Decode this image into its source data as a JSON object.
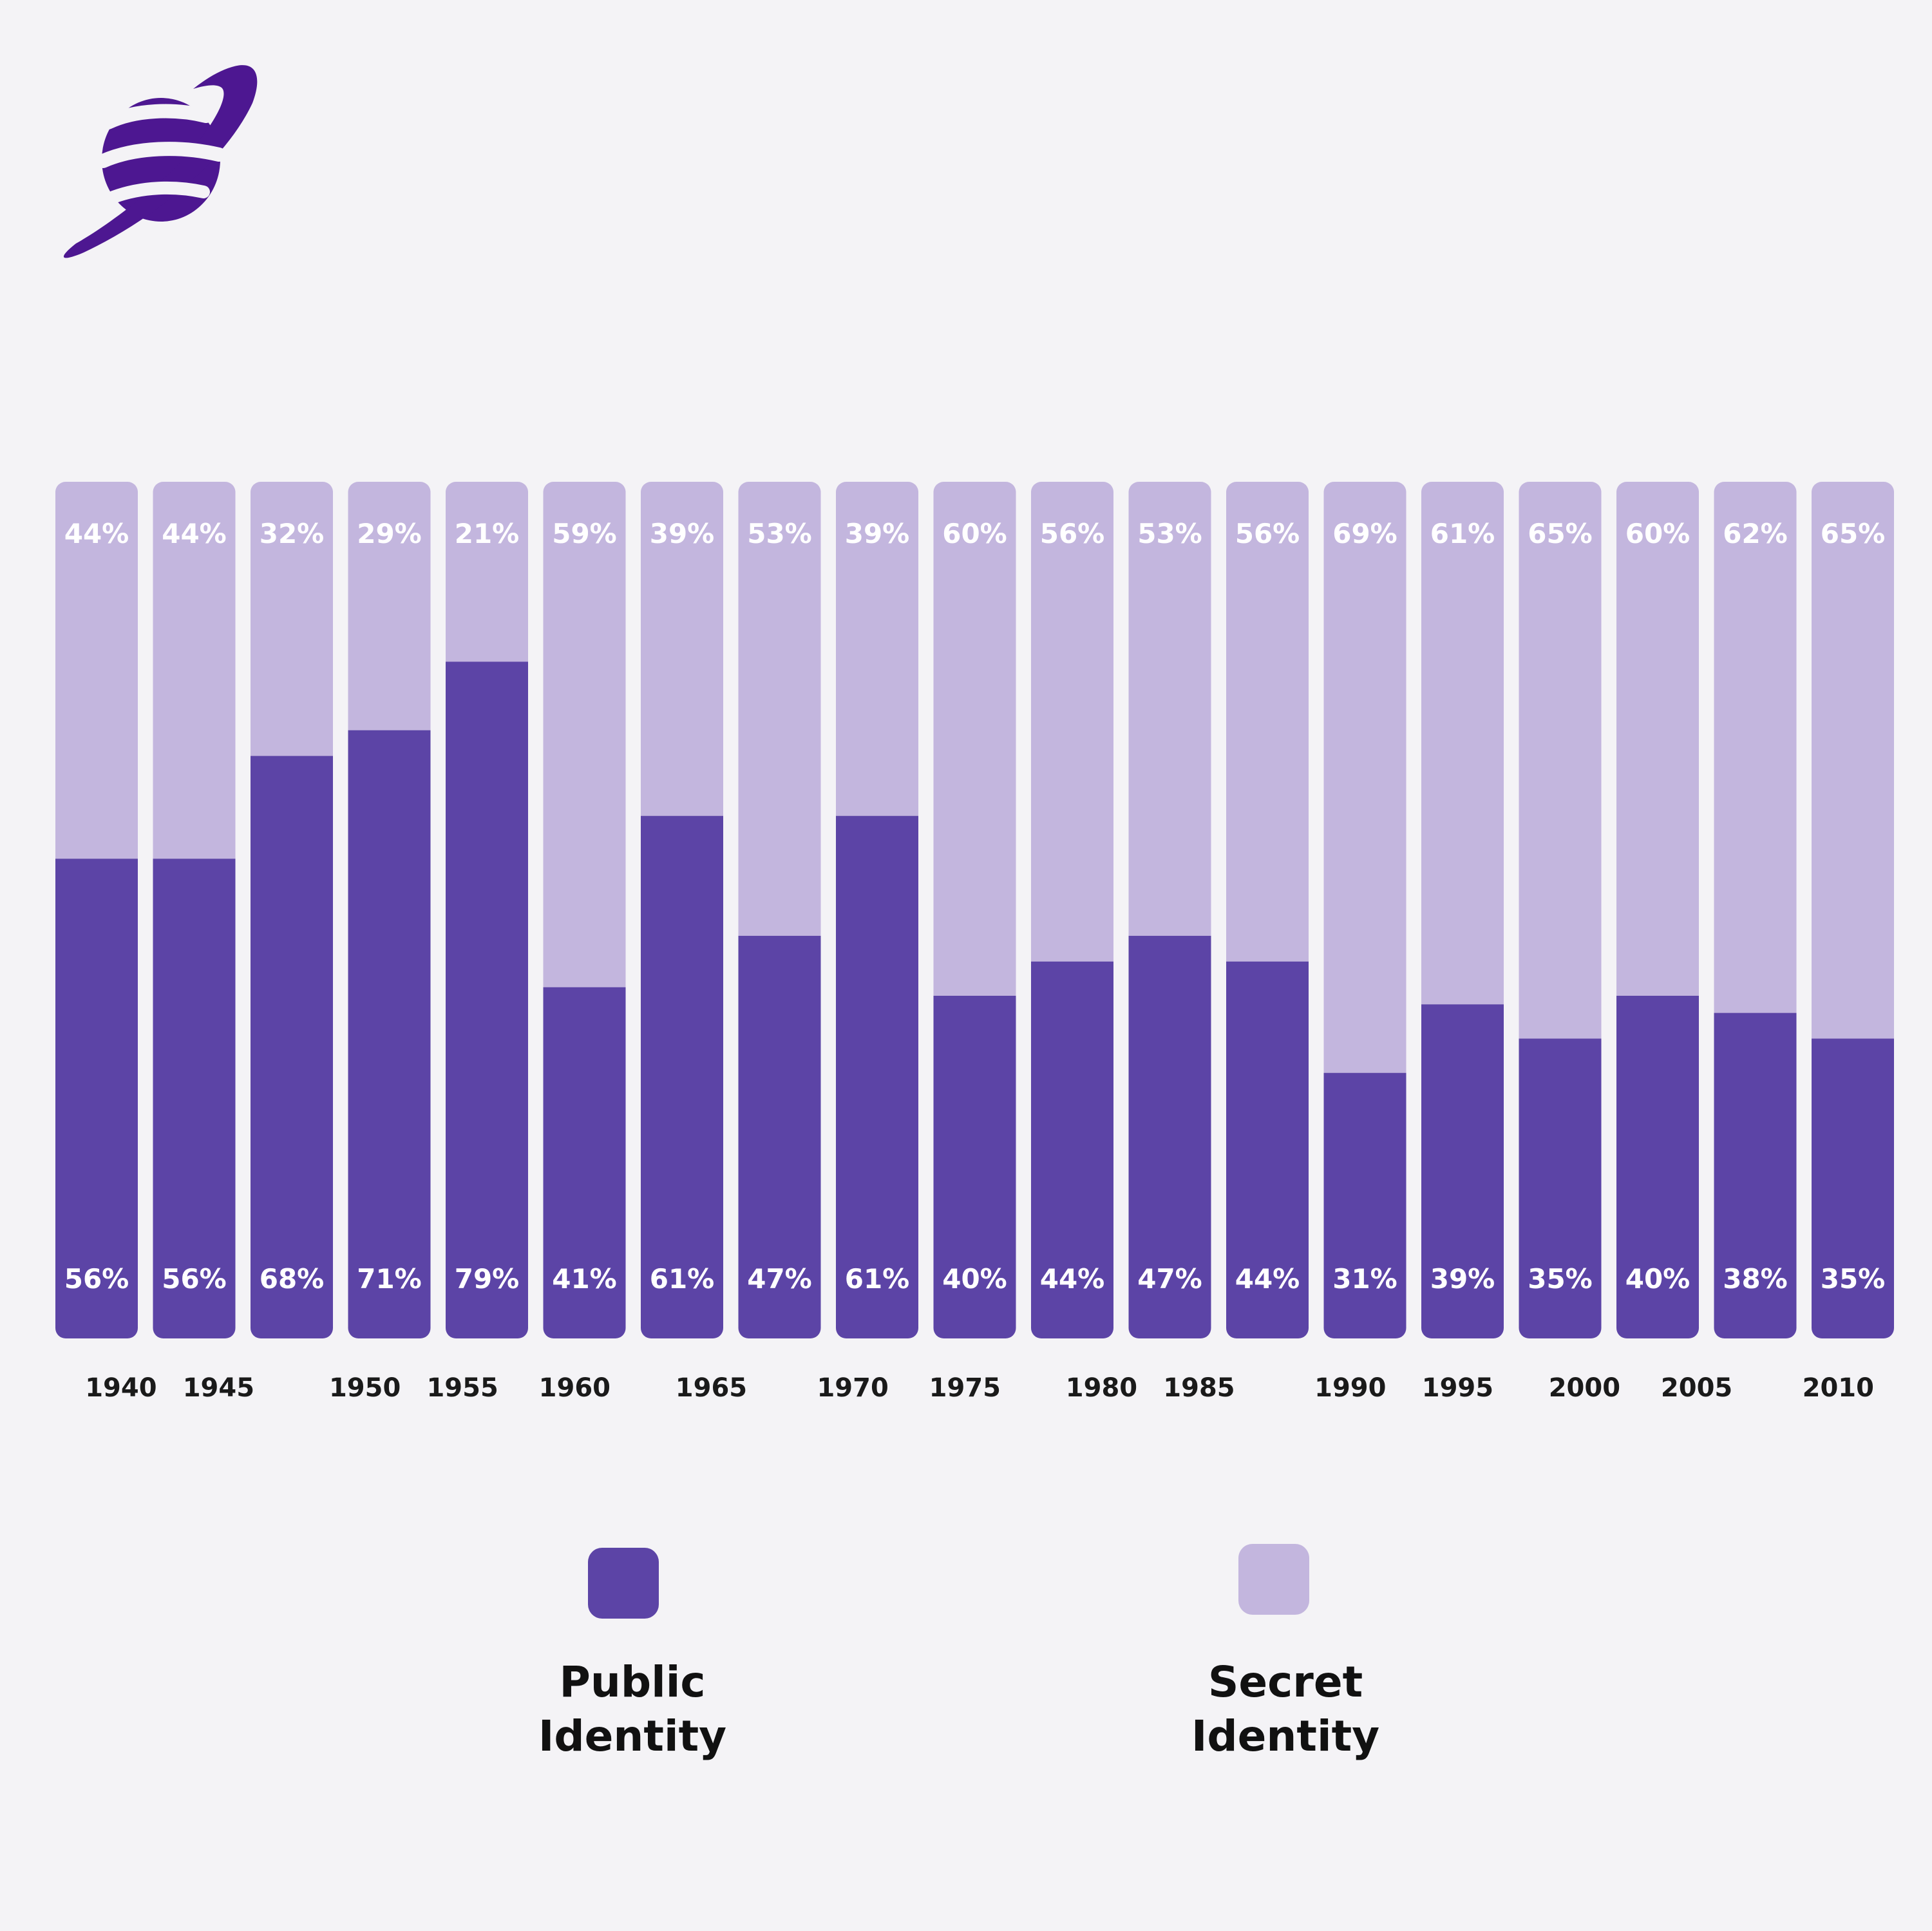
{
  "colors": {
    "public": "#5c44a6",
    "secret": "#c3b6de",
    "logo": "#4d1791",
    "background": "#f4f3f6",
    "label_in_bar": "#ffffff",
    "year_text": "#1a1a1a"
  },
  "logo": {
    "icon": "saturn-planet-icon"
  },
  "chart_data": {
    "type": "bar",
    "stacked": true,
    "normalized_percent": true,
    "title": "",
    "xlabel": "",
    "ylabel": "",
    "ylim": [
      0,
      100
    ],
    "grid": false,
    "legend_position": "bottom",
    "categories": [
      "1940",
      "1945",
      "1950",
      "1955",
      "1960",
      "1965",
      "1970",
      "1975",
      "1980",
      "1985",
      "1990",
      "1995",
      "2000",
      "2005",
      "2010",
      "",
      "",
      "",
      ""
    ],
    "series": [
      {
        "name": "Public Identity",
        "values": [
          56,
          56,
          68,
          71,
          79,
          41,
          61,
          47,
          61,
          40,
          44,
          47,
          44,
          31,
          39,
          35,
          40,
          38,
          35
        ]
      },
      {
        "name": "Secret Identity",
        "values": [
          44,
          44,
          32,
          29,
          21,
          59,
          39,
          53,
          39,
          60,
          56,
          53,
          56,
          69,
          61,
          65,
          60,
          62,
          65
        ]
      }
    ],
    "year_labels": [
      {
        "text": "1940",
        "between": 0.25
      },
      {
        "text": "1945",
        "between": 1.25
      },
      {
        "text": "1950",
        "between": 2.75
      },
      {
        "text": "1955",
        "between": 3.75
      },
      {
        "text": "1960",
        "between": 4.9
      },
      {
        "text": "1965",
        "between": 6.3
      },
      {
        "text": "1970",
        "between": 7.75
      },
      {
        "text": "1975",
        "between": 8.9
      },
      {
        "text": "1980",
        "between": 10.3
      },
      {
        "text": "1985",
        "between": 11.3
      },
      {
        "text": "1990",
        "between": 12.85
      },
      {
        "text": "1995",
        "between": 13.95
      },
      {
        "text": "2000",
        "between": 15.25
      },
      {
        "text": "2005",
        "between": 16.4
      },
      {
        "text": "2010",
        "between": 17.85
      }
    ]
  },
  "legend": {
    "public_label": "Public\nIdentity",
    "secret_label": "Secret\nIdentity"
  }
}
